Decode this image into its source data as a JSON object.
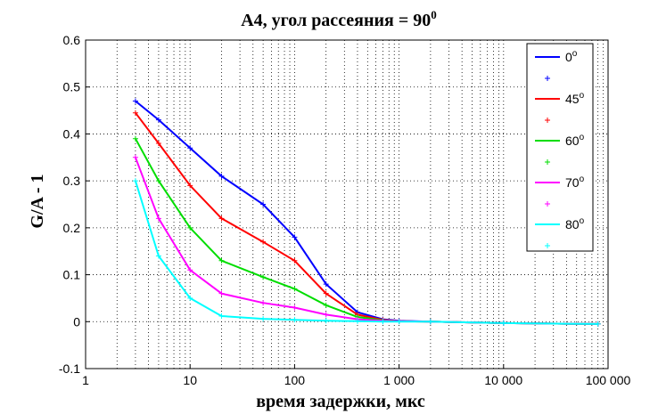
{
  "chart_data": {
    "type": "line",
    "title": "A4,  угол рассеяния = 90",
    "title_superscript": "0",
    "xlabel": "время задержки, мкс",
    "ylabel": "G/A - 1",
    "xscale": "log",
    "xlim": [
      1,
      100000
    ],
    "ylim": [
      -0.1,
      0.6
    ],
    "x_ticks": [
      1,
      10,
      100,
      1000,
      10000,
      100000
    ],
    "x_tick_labels": [
      "1",
      "10",
      "100",
      "1 000",
      "10 000",
      "100 000"
    ],
    "y_ticks": [
      -0.1,
      0,
      0.1,
      0.2,
      0.3,
      0.4,
      0.5,
      0.6
    ],
    "y_tick_labels": [
      "-0.1",
      "0",
      "0.1",
      "0.2",
      "0.3",
      "0.4",
      "0.5",
      "0.6"
    ],
    "grid": true,
    "legend_position": "top-right",
    "x": [
      3,
      5,
      10,
      20,
      50,
      100,
      200,
      400,
      700,
      1000,
      2000,
      10000,
      80000
    ],
    "series": [
      {
        "name": "0",
        "color": "#0000ff",
        "values": [
          0.47,
          0.43,
          0.37,
          0.31,
          0.25,
          0.18,
          0.08,
          0.02,
          0.005,
          0.002,
          0.0,
          -0.003,
          -0.005
        ]
      },
      {
        "name": "45",
        "color": "#ff0000",
        "values": [
          0.445,
          0.38,
          0.29,
          0.22,
          0.17,
          0.13,
          0.06,
          0.015,
          0.004,
          0.001,
          0.0,
          -0.003,
          -0.005
        ]
      },
      {
        "name": "60",
        "color": "#00dd00",
        "values": [
          0.39,
          0.3,
          0.2,
          0.13,
          0.095,
          0.07,
          0.035,
          0.01,
          0.003,
          0.001,
          0.0,
          -0.003,
          -0.005
        ]
      },
      {
        "name": "70",
        "color": "#ff00ff",
        "values": [
          0.35,
          0.22,
          0.11,
          0.06,
          0.04,
          0.03,
          0.015,
          0.005,
          0.002,
          0.001,
          0.0,
          -0.003,
          -0.005
        ]
      },
      {
        "name": "80",
        "color": "#00ffff",
        "values": [
          0.3,
          0.14,
          0.05,
          0.012,
          0.006,
          0.004,
          0.002,
          0.001,
          0.0,
          0.0,
          0.0,
          -0.003,
          -0.005
        ]
      }
    ],
    "legend_entries": [
      "0",
      "45",
      "60",
      "70",
      "80"
    ],
    "legend_superscript": "o"
  }
}
